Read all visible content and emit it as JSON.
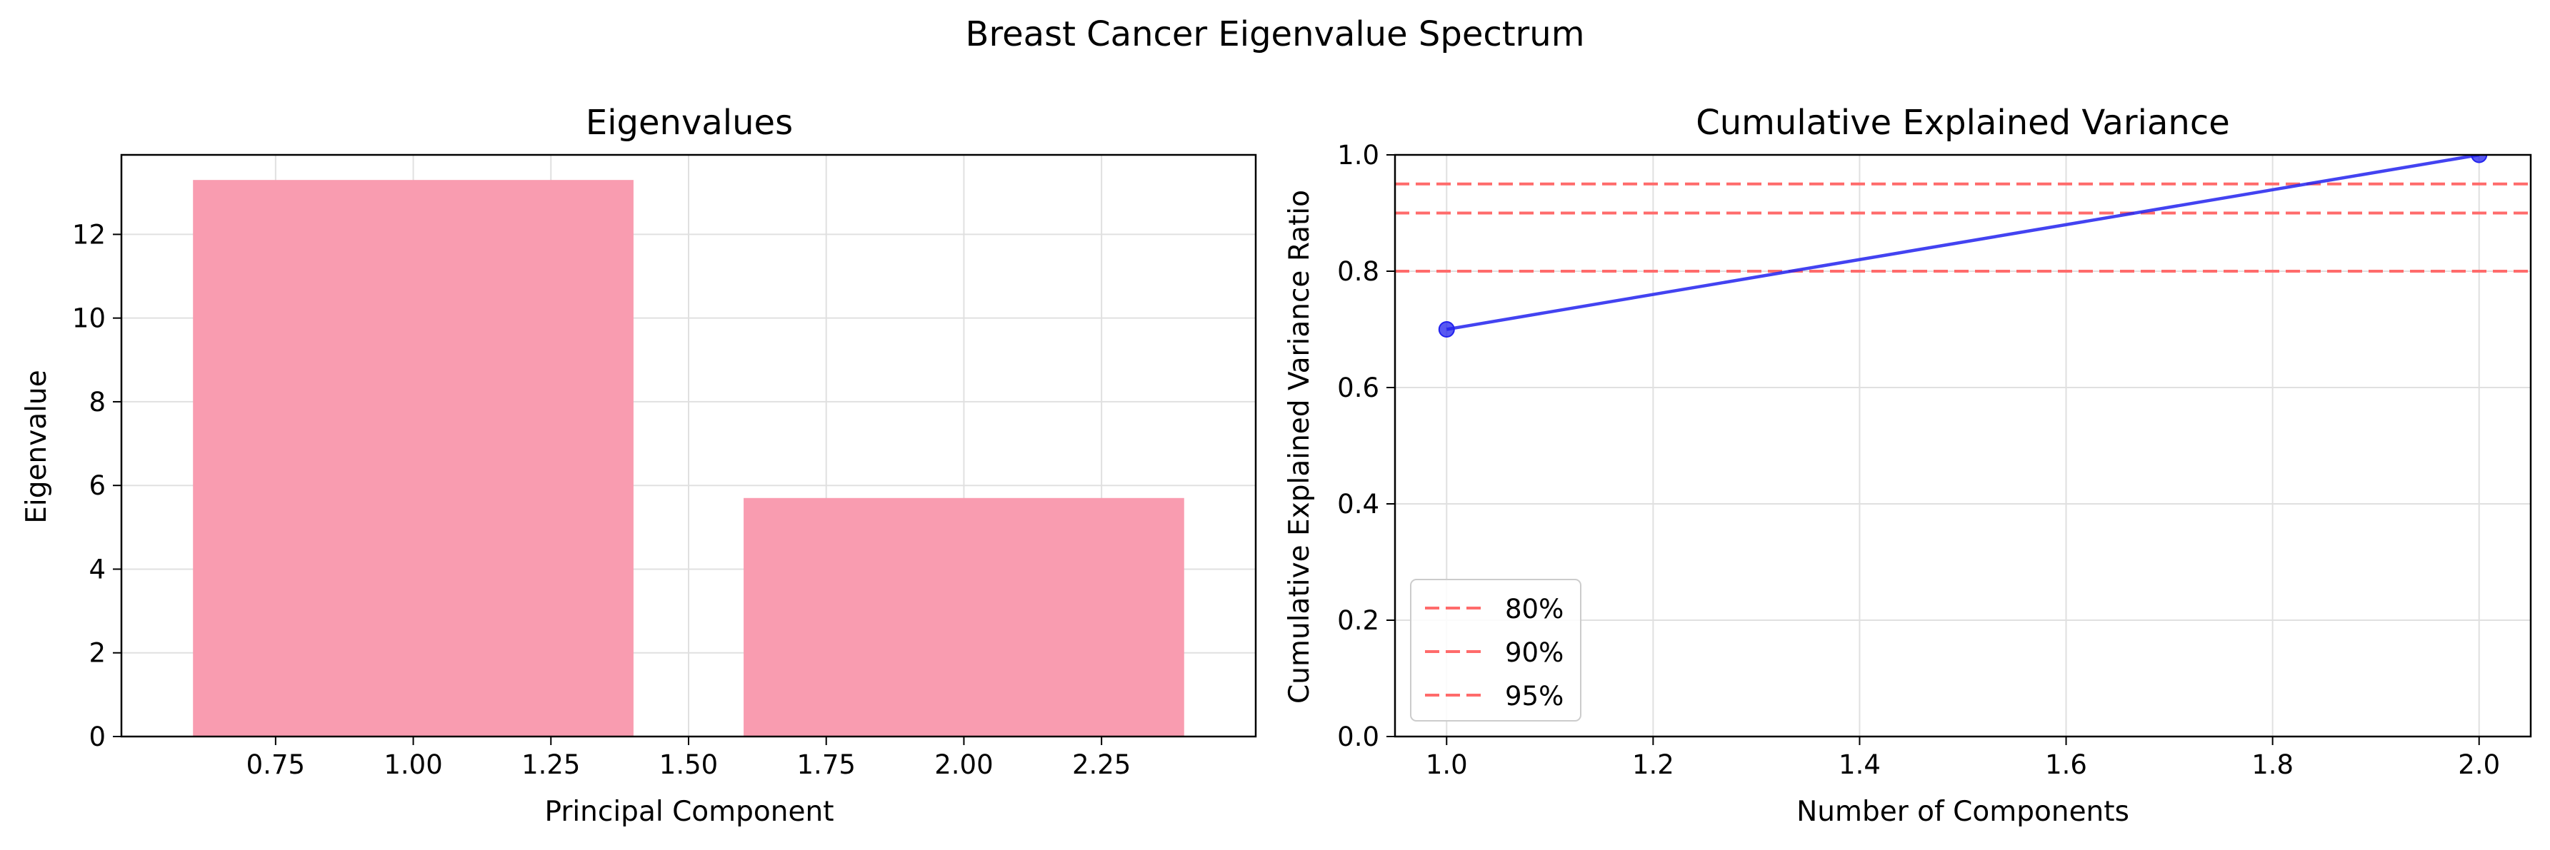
{
  "figure": {
    "suptitle": "Breast Cancer Eigenvalue Spectrum"
  },
  "colors": {
    "bar": "#f99cb0",
    "line": "#2222ee",
    "threshold": "#ff6b6b",
    "grid": "#e0e0e0"
  },
  "chart_data": [
    {
      "type": "bar",
      "title": "Eigenvalues",
      "xlabel": "Principal Component",
      "ylabel": "Eigenvalue",
      "x": [
        1,
        2
      ],
      "values": [
        13.3,
        5.7
      ],
      "bar_width": 0.8,
      "xlim": [
        0.47,
        2.53
      ],
      "ylim": [
        0,
        13.9
      ],
      "xticks": [
        0.75,
        1.0,
        1.25,
        1.5,
        1.75,
        2.0,
        2.25
      ],
      "xtick_labels": [
        "0.75",
        "1.00",
        "1.25",
        "1.50",
        "1.75",
        "2.00",
        "2.25"
      ],
      "yticks": [
        0,
        2,
        4,
        6,
        8,
        10,
        12
      ],
      "ytick_labels": [
        "0",
        "2",
        "4",
        "6",
        "8",
        "10",
        "12"
      ],
      "grid": true
    },
    {
      "type": "line",
      "title": "Cumulative Explained Variance",
      "xlabel": "Number of Components",
      "ylabel": "Cumulative Explained Variance Ratio",
      "x": [
        1,
        2
      ],
      "series": [
        {
          "values": [
            0.7,
            1.0
          ],
          "marker": "circle"
        }
      ],
      "thresholds": [
        {
          "label": "80%",
          "value": 0.8
        },
        {
          "label": "90%",
          "value": 0.9
        },
        {
          "label": "95%",
          "value": 0.95
        }
      ],
      "xlim": [
        0.95,
        2.05
      ],
      "ylim": [
        0,
        1.0
      ],
      "xticks": [
        1.0,
        1.2,
        1.4,
        1.6,
        1.8,
        2.0
      ],
      "xtick_labels": [
        "1.0",
        "1.2",
        "1.4",
        "1.6",
        "1.8",
        "2.0"
      ],
      "yticks": [
        0,
        0.2,
        0.4,
        0.6,
        0.8,
        1.0
      ],
      "ytick_labels": [
        "0.0",
        "0.2",
        "0.4",
        "0.6",
        "0.8",
        "1.0"
      ],
      "grid": true,
      "legend_position": "lower-left"
    }
  ]
}
